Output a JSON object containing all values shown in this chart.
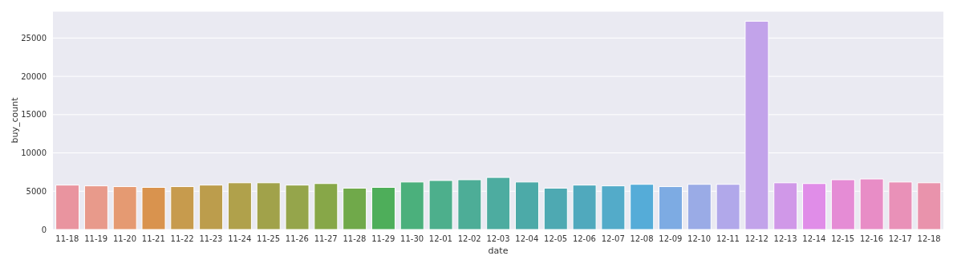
{
  "chart_data": {
    "type": "bar",
    "xlabel": "date",
    "ylabel": "buy_count",
    "categories": [
      "11-18",
      "11-19",
      "11-20",
      "11-21",
      "11-22",
      "11-23",
      "11-24",
      "11-25",
      "11-26",
      "11-27",
      "11-28",
      "11-29",
      "11-30",
      "12-01",
      "12-02",
      "12-03",
      "12-04",
      "12-05",
      "12-06",
      "12-07",
      "12-08",
      "12-09",
      "12-10",
      "12-11",
      "12-12",
      "12-13",
      "12-14",
      "12-15",
      "12-16",
      "12-17",
      "12-18"
    ],
    "values": [
      5800,
      5700,
      5600,
      5500,
      5600,
      5800,
      6100,
      6100,
      5800,
      6000,
      5400,
      5500,
      6200,
      6400,
      6500,
      6800,
      6200,
      5400,
      5800,
      5700,
      5900,
      5600,
      5900,
      5900,
      27200,
      6100,
      6000,
      6500,
      6600,
      6200,
      6100
    ],
    "colors": [
      "#e9949f",
      "#e89a8b",
      "#e59a72",
      "#d9934e",
      "#c79b4d",
      "#bc9d4c",
      "#b0a14b",
      "#a1a24a",
      "#95a54b",
      "#87a748",
      "#70a94a",
      "#4eae5a",
      "#4bb07c",
      "#4daf8c",
      "#4dad97",
      "#4daca0",
      "#4caaa8",
      "#4ea9b2",
      "#50a9bd",
      "#53abc9",
      "#55acd8",
      "#7dabe3",
      "#9aabe6",
      "#b1a8ea",
      "#c2a3ea",
      "#d098e8",
      "#e08de8",
      "#e58cd5",
      "#e88dc6",
      "#e991b8",
      "#e993ac"
    ],
    "ylim": [
      0,
      28500
    ],
    "yticks": [
      0,
      5000,
      10000,
      15000,
      20000,
      25000
    ],
    "grid": "y"
  }
}
